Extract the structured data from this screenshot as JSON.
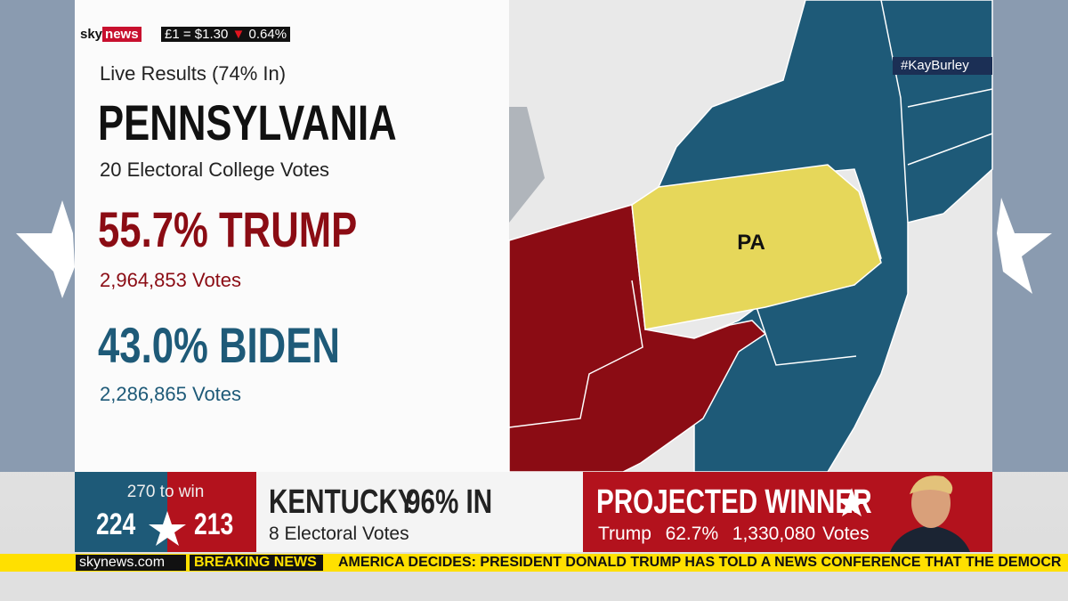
{
  "logo": {
    "sky": "sky",
    "news": "news"
  },
  "currency": {
    "rate": "£1 = $1.30",
    "change": "0.64%"
  },
  "state_panel": {
    "status": "Live Results (74% In)",
    "state": "PENNSYLVANIA",
    "electoral_votes": "20 Electoral College Votes",
    "candidates": [
      {
        "headline": "55.7% TRUMP",
        "votes": "2,964,853 Votes"
      },
      {
        "headline": "43.0% BIDEN",
        "votes": "2,286,865 Votes"
      }
    ]
  },
  "map": {
    "label": "PA"
  },
  "hashtag": "#KayBurley",
  "tally": {
    "caption": "270 to win",
    "left": "224",
    "right": "213"
  },
  "race": {
    "state": "KENTUCKY",
    "reporting": "96% IN",
    "electoral_votes": "8 Electoral Votes"
  },
  "projection": {
    "title": "PROJECTED WINNER",
    "name": "Trump",
    "share": "62.7%",
    "votes": "1,330,080 Votes"
  },
  "ticker": {
    "site": "skynews.com",
    "tag": "BREAKING NEWS",
    "text": "AMERICA DECIDES: PRESIDENT DONALD TRUMP HAS TOLD A NEWS CONFERENCE THAT THE DEMOCR"
  }
}
